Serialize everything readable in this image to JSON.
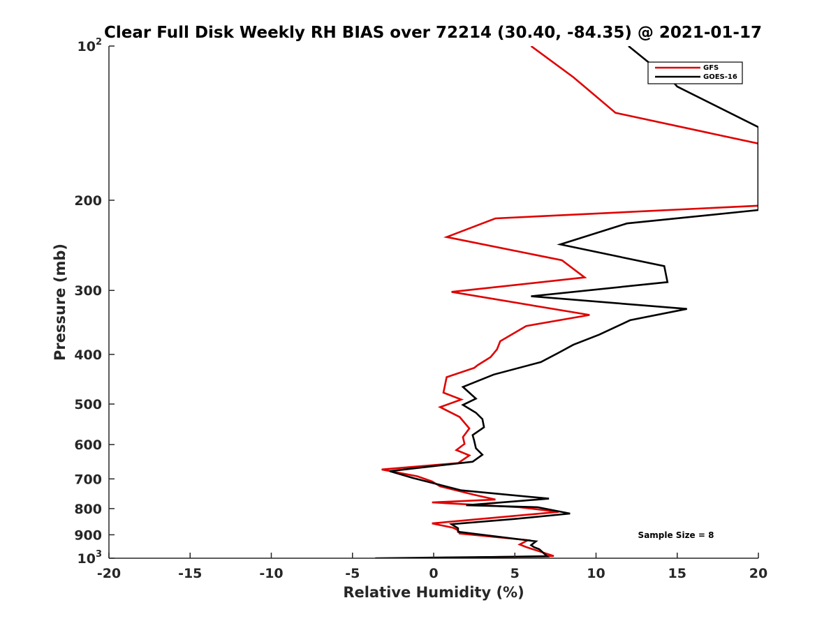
{
  "chart_data": {
    "type": "line",
    "title": "Clear Full Disk Weekly RH BIAS over 72214 (30.40, -84.35) @ 2021-01-17",
    "xlabel": "Relative Humidity (%)",
    "ylabel": "Pressure (mb)",
    "xlim": [
      -20,
      20
    ],
    "ylim": [
      100,
      1000
    ],
    "yscale": "log",
    "y_reversed": true,
    "x_ticks": [
      "-20",
      "-15",
      "-10",
      "-5",
      "0",
      "5",
      "10",
      "15",
      "20"
    ],
    "y_ticks": [
      {
        "value": 100,
        "base": "10",
        "exp": "2"
      },
      {
        "value": 200,
        "base": "200",
        "exp": ""
      },
      {
        "value": 300,
        "base": "300",
        "exp": ""
      },
      {
        "value": 400,
        "base": "400",
        "exp": ""
      },
      {
        "value": 500,
        "base": "500",
        "exp": ""
      },
      {
        "value": 600,
        "base": "600",
        "exp": ""
      },
      {
        "value": 700,
        "base": "700",
        "exp": ""
      },
      {
        "value": 800,
        "base": "800",
        "exp": ""
      },
      {
        "value": 900,
        "base": "900",
        "exp": ""
      },
      {
        "value": 1000,
        "base": "10",
        "exp": "3"
      }
    ],
    "legend_location": "top-right",
    "annotation": "Sample Size = 8",
    "series": [
      {
        "name": "GFS",
        "color": "#e00000",
        "points": [
          [
            6.0,
            100
          ],
          [
            8.6,
            115
          ],
          [
            11.2,
            135
          ],
          [
            20.0,
            155
          ],
          [
            20.0,
            205
          ],
          [
            3.8,
            217
          ],
          [
            0.8,
            236
          ],
          [
            7.9,
            262
          ],
          [
            9.3,
            283
          ],
          [
            1.1,
            302
          ],
          [
            9.6,
            335
          ],
          [
            5.7,
            352
          ],
          [
            4.1,
            377
          ],
          [
            3.9,
            391
          ],
          [
            3.5,
            405
          ],
          [
            2.7,
            420
          ],
          [
            2.5,
            425
          ],
          [
            0.8,
            443
          ],
          [
            0.6,
            475
          ],
          [
            1.7,
            490
          ],
          [
            0.4,
            507
          ],
          [
            1.6,
            530
          ],
          [
            2.2,
            558
          ],
          [
            1.8,
            580
          ],
          [
            1.9,
            598
          ],
          [
            1.4,
            615
          ],
          [
            2.2,
            630
          ],
          [
            1.5,
            652
          ],
          [
            -3.2,
            671
          ],
          [
            -1.0,
            692
          ],
          [
            -0.1,
            708
          ],
          [
            0.4,
            724
          ],
          [
            2.5,
            752
          ],
          [
            3.8,
            768
          ],
          [
            -0.1,
            778
          ],
          [
            5.3,
            795
          ],
          [
            7.7,
            812
          ],
          [
            3.8,
            833
          ],
          [
            -0.1,
            855
          ],
          [
            1.2,
            872
          ],
          [
            1.5,
            882
          ],
          [
            1.6,
            895
          ],
          [
            5.8,
            922
          ],
          [
            5.3,
            940
          ],
          [
            5.7,
            951
          ],
          [
            6.4,
            967
          ],
          [
            7.4,
            990
          ],
          [
            -0.5,
            1000
          ]
        ]
      },
      {
        "name": "GOES-16",
        "color": "#000000",
        "points": [
          [
            12.0,
            100
          ],
          [
            14.8,
            118
          ],
          [
            15.0,
            120
          ],
          [
            20.0,
            144
          ],
          [
            20.0,
            209
          ],
          [
            11.9,
            222
          ],
          [
            7.8,
            244
          ],
          [
            14.2,
            269
          ],
          [
            14.4,
            289
          ],
          [
            6.0,
            308
          ],
          [
            15.6,
            326
          ],
          [
            12.1,
            343
          ],
          [
            10.2,
            366
          ],
          [
            8.6,
            383
          ],
          [
            7.7,
            397
          ],
          [
            6.6,
            414
          ],
          [
            3.7,
            438
          ],
          [
            1.8,
            463
          ],
          [
            2.6,
            488
          ],
          [
            1.8,
            502
          ],
          [
            2.6,
            520
          ],
          [
            3.0,
            535
          ],
          [
            3.1,
            555
          ],
          [
            2.4,
            575
          ],
          [
            2.5,
            590
          ],
          [
            2.6,
            610
          ],
          [
            3.0,
            628
          ],
          [
            2.4,
            648
          ],
          [
            -2.7,
            676
          ],
          [
            -1.3,
            697
          ],
          [
            0.3,
            718
          ],
          [
            1.7,
            737
          ],
          [
            7.1,
            765
          ],
          [
            2.0,
            788
          ],
          [
            6.4,
            795
          ],
          [
            8.4,
            818
          ],
          [
            5.0,
            838
          ],
          [
            1.1,
            858
          ],
          [
            1.5,
            874
          ],
          [
            1.5,
            888
          ],
          [
            6.3,
            927
          ],
          [
            6.0,
            943
          ],
          [
            6.2,
            952
          ],
          [
            6.5,
            960
          ],
          [
            7.0,
            992
          ],
          [
            -3.6,
            1000
          ]
        ]
      }
    ]
  }
}
